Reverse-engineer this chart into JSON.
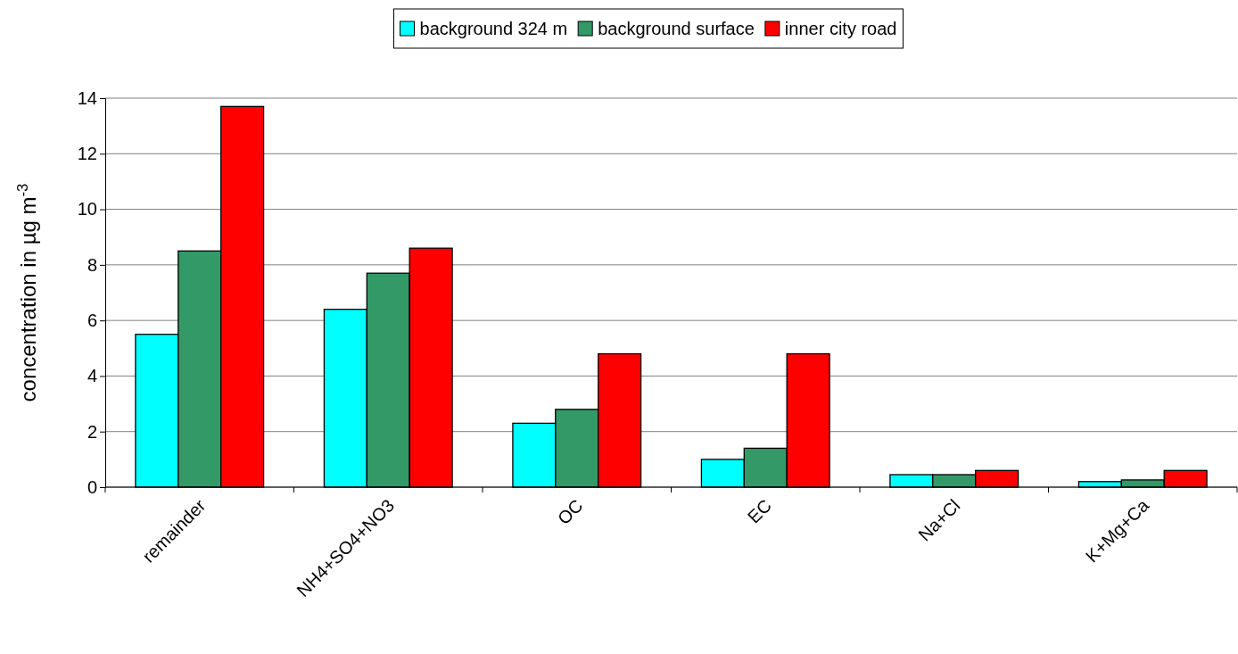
{
  "chart_data": {
    "type": "bar",
    "ylabel": "concentration in µg m$^{-3}$",
    "categories": [
      "remainder",
      "NH4+SO4+NO3",
      "OC",
      "EC",
      "Na+Cl",
      "K+Mg+Ca"
    ],
    "series": [
      {
        "name": "background 324 m",
        "color": "#00ffff",
        "values": [
          5.5,
          6.4,
          2.3,
          1.0,
          0.45,
          0.2
        ]
      },
      {
        "name": "background surface",
        "color": "#339966",
        "values": [
          8.5,
          7.7,
          2.8,
          1.4,
          0.45,
          0.26
        ]
      },
      {
        "name": "inner city road",
        "color": "#ff0000",
        "values": [
          13.7,
          8.6,
          4.8,
          4.8,
          0.6,
          0.6
        ]
      }
    ],
    "ylim": [
      0,
      14
    ],
    "yticks": [
      0,
      2,
      4,
      6,
      8,
      10,
      12,
      14
    ],
    "grid": "y",
    "legend": "top"
  }
}
